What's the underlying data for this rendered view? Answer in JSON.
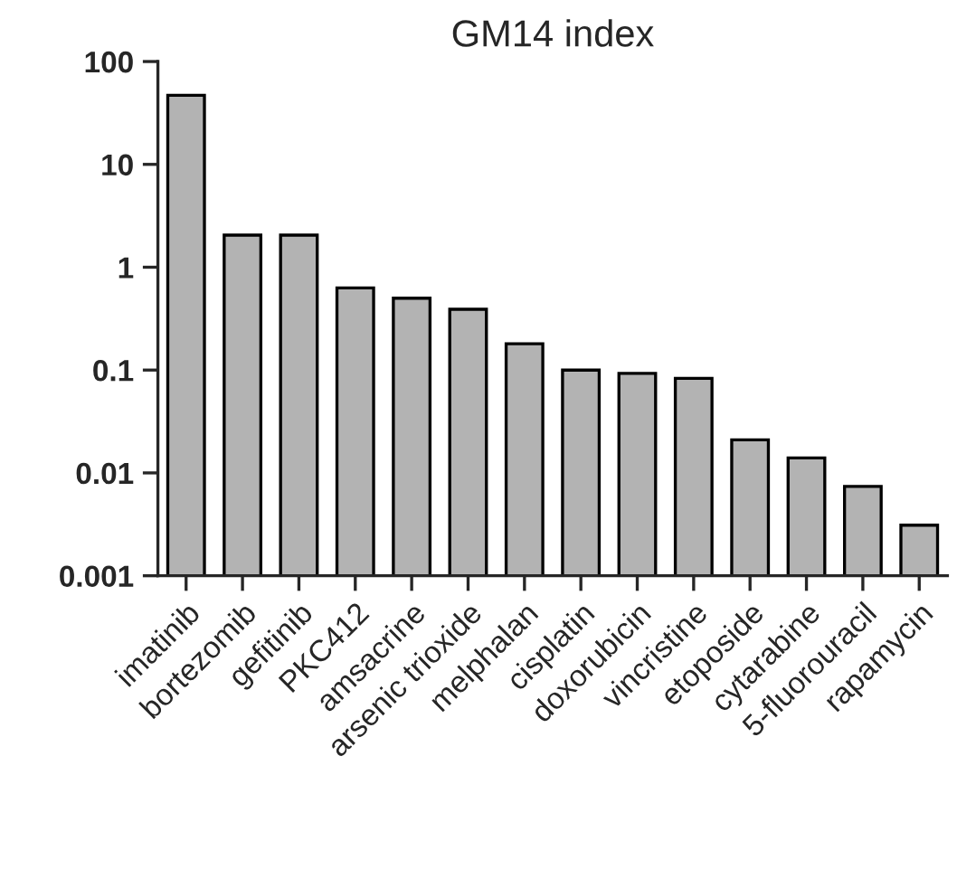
{
  "chart_data": {
    "type": "bar",
    "title": "GM14 index",
    "log": true,
    "categories": [
      "imatinib",
      "bortezomib",
      "gefitinib",
      "PKC412",
      "amsacrine",
      "arsenic trioxide",
      "melphalan",
      "cisplatin",
      "doxorubicin",
      "vincristine",
      "etoposide",
      "cytarabine",
      "5-fluorouracil",
      "rapamycin"
    ],
    "values": [
      47,
      2.05,
      2.05,
      0.63,
      0.5,
      0.39,
      0.18,
      0.1,
      0.093,
      0.083,
      0.021,
      0.014,
      0.0074,
      0.0031
    ],
    "color": "#b3b3b3",
    "ylim": [
      0.001,
      100
    ],
    "yticks": [
      0.001,
      0.01,
      0.1,
      1,
      10,
      100
    ],
    "grid": false,
    "legend": false
  }
}
